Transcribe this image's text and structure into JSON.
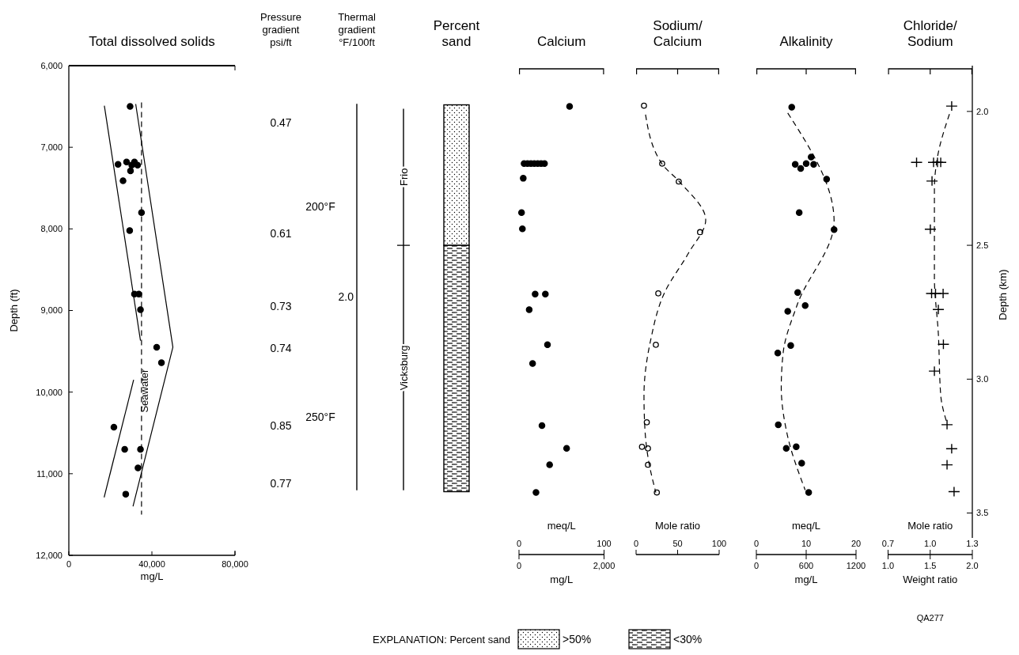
{
  "chart_data": [
    {
      "type": "scatter",
      "title": "Total dissolved solids",
      "xlabel": "mg/L",
      "ylabel": "Depth (ft)",
      "xlim": [
        0,
        80000
      ],
      "xticks": [
        0,
        {
          "value": 40000,
          "label": "40,000"
        },
        {
          "value": 80000,
          "label": "80,000"
        }
      ],
      "ylim": [
        12000,
        6000
      ],
      "yticks": [
        {
          "value": 6000,
          "label": "6,000"
        },
        {
          "value": 7000,
          "label": "7,000"
        },
        {
          "value": 8000,
          "label": "8,000"
        },
        {
          "value": 9000,
          "label": "9,000"
        },
        {
          "value": 10000,
          "label": "10,000"
        },
        {
          "value": 11000,
          "label": "11,000"
        },
        {
          "value": 12000,
          "label": "12,000"
        }
      ],
      "marker": "circle",
      "series": [
        {
          "type": "scatter",
          "color": "#000000",
          "x": [
            29500,
            23700,
            27800,
            30300,
            31600,
            33100,
            29700,
            26100,
            35000,
            29300,
            31600,
            33700,
            34500,
            42300,
            44600,
            21700,
            26900,
            34500,
            33300,
            27400
          ],
          "values": [
            6500,
            7210,
            7180,
            7220,
            7180,
            7220,
            7290,
            7410,
            7800,
            8020,
            8800,
            8800,
            8990,
            9450,
            9640,
            10430,
            10700,
            10700,
            10930,
            11250
          ]
        },
        {
          "type": "line",
          "marker": "none",
          "color": "#000000",
          "x": [
            17100,
            34500
          ],
          "values": [
            6490,
            9370
          ]
        },
        {
          "type": "line",
          "marker": "none",
          "color": "#000000",
          "x": [
            31200,
            17000
          ],
          "values": [
            9850,
            11290
          ]
        },
        {
          "type": "line",
          "marker": "none",
          "color": "#000000",
          "x": [
            32200,
            50100,
            30900
          ],
          "values": [
            6470,
            9450,
            11400
          ]
        },
        {
          "type": "line",
          "marker": "none",
          "name": "Seawater",
          "color": "#000000",
          "line_style": "dashed",
          "x": [
            35000,
            35000
          ],
          "values": [
            6450,
            11500
          ]
        }
      ]
    },
    {
      "type": "other",
      "title": "Pressure\ngradient\npsi/ft",
      "annotations": [
        "0.47",
        "0.61",
        "0.73",
        "0.74",
        "0.85",
        "0.77"
      ]
    },
    {
      "type": "other",
      "title": "Thermal\ngradient\n°F/100ft",
      "annotations": [
        "2.0",
        "200°F",
        "250°F"
      ]
    },
    {
      "type": "other",
      "annotations": [
        "Frio",
        "Vicksburg"
      ]
    },
    {
      "type": "other",
      "title": "Percent\nsand",
      "annotations": [
        "EXPLANATION: Percent sand",
        ">50%",
        "<30%"
      ]
    },
    {
      "type": "scatter",
      "title": "Calcium",
      "xlabel": "meq/L",
      "x2label": "mg/L",
      "xlim": [
        0,
        100
      ],
      "xticks": [
        0,
        100
      ],
      "x2lim": [
        0,
        2000
      ],
      "x2ticks": [
        0,
        {
          "value": 2000,
          "label": "2,000"
        }
      ],
      "ylim": [
        12000,
        6000
      ],
      "tick_labels": "x",
      "marker": "circle",
      "series": [
        {
          "type": "scatter",
          "color": "#000000",
          "x": [
            59.5,
            6,
            10,
            14,
            18,
            22,
            26,
            30,
            5,
            3,
            4,
            19,
            31,
            12,
            33.5,
            16,
            27,
            56,
            36,
            20
          ],
          "values": [
            6500,
            7200,
            7200,
            7200,
            7200,
            7200,
            7200,
            7200,
            7380,
            7800,
            8000,
            8800,
            8800,
            8990,
            9420,
            9650,
            10410,
            10690,
            10890,
            11230
          ]
        }
      ]
    },
    {
      "type": "scatter",
      "title": "Sodium/\nCalcium",
      "xlabel": "Mole ratio",
      "xlim": [
        0,
        100
      ],
      "xticks": [
        0,
        50,
        100
      ],
      "ylim": [
        12000,
        6000
      ],
      "tick_labels": "x",
      "marker": "circle",
      "series": [
        {
          "type": "scatter",
          "color": "#000000",
          "x": [
            9.5,
            31.4,
            51.4,
            77,
            26.7,
            23.8,
            12.9,
            7.1,
            14.3,
            14.3,
            25
          ],
          "values": [
            6490,
            7200,
            7420,
            8040,
            8790,
            9420,
            10370,
            10670,
            10690,
            10890,
            11230
          ]
        },
        {
          "type": "line",
          "marker": "none",
          "color": "#000000",
          "line_style": "dashed",
          "x": [
            11.4,
            31,
            52,
            83.8,
            62.9,
            34.3,
            17.6,
            9.5,
            10.5,
            15.2,
            23.8
          ],
          "values": [
            6600,
            7200,
            7420,
            7890,
            8300,
            8780,
            9360,
            10040,
            10430,
            10850,
            11230
          ]
        }
      ]
    },
    {
      "type": "scatter",
      "title": "Alkalinity",
      "xlabel": "meq/L",
      "x2label": "mg/L",
      "xlim": [
        0,
        20
      ],
      "xticks": [
        0,
        10,
        20
      ],
      "x2lim": [
        0,
        1200
      ],
      "x2ticks": [
        0,
        600,
        1200
      ],
      "ylim": [
        12000,
        6000
      ],
      "tick_labels": "x",
      "marker": "circle",
      "series": [
        {
          "type": "scatter",
          "color": "#000000",
          "x": [
            7.1,
            11.0,
            10.0,
            11.5,
            7.8,
            8.9,
            14.1,
            8.6,
            15.6,
            8.3,
            9.8,
            6.3,
            6.9,
            4.3,
            4.4,
            6.0,
            8.0,
            9.1,
            10.5
          ],
          "values": [
            6510,
            7120,
            7200,
            7210,
            7210,
            7260,
            7390,
            7800,
            8010,
            8780,
            8940,
            9010,
            9430,
            9520,
            10400,
            10690,
            10670,
            10870,
            11230
          ]
        },
        {
          "type": "line",
          "marker": "none",
          "color": "#000000",
          "line_style": "dashed",
          "x": [
            6.3,
            15.6,
            8.2,
            5.4,
            5.0,
            6.2,
            9.8
          ],
          "values": [
            6580,
            7910,
            8930,
            9510,
            9940,
            10520,
            11200
          ]
        }
      ]
    },
    {
      "type": "scatter",
      "title": "Chloride/\nSodium",
      "xlabel": "Mole ratio",
      "x2label": "Weight ratio",
      "y2label": "Depth (km)",
      "xlim": [
        0.7,
        1.3
      ],
      "xticks": [
        0.7,
        {
          "value": 1,
          "label": "1.0"
        },
        1.3
      ],
      "x2lim": [
        1,
        2
      ],
      "x2ticks": [
        {
          "value": 1,
          "label": "1.0"
        },
        1.5,
        {
          "value": 2,
          "label": "2.0"
        }
      ],
      "y2lim": [
        3.658,
        1.829
      ],
      "y2ticks": [
        {
          "value": 2,
          "label": "2.0"
        },
        2.5,
        {
          "value": 3,
          "label": "3.0"
        },
        3.5
      ],
      "marker": "cross",
      "annotations": [
        "QA277"
      ],
      "series": [
        {
          "type": "scatter",
          "axis": "y2",
          "color": "#000000",
          "x": [
            1.153,
            0.903,
            1.024,
            1.052,
            1.075,
            1.013,
            1.001,
            1.01,
            1.038,
            1.092,
            1.058,
            1.094,
            1.03,
            1.12,
            1.153,
            1.12,
            1.17
          ],
          "values": [
            1.98,
            2.19,
            2.19,
            2.19,
            2.19,
            2.26,
            2.44,
            2.68,
            2.68,
            2.68,
            2.74,
            2.87,
            2.97,
            3.17,
            3.26,
            3.32,
            3.42
          ]
        },
        {
          "type": "line",
          "axis": "y2",
          "marker": "none",
          "color": "#000000",
          "line_style": "dashed",
          "x": [
            1.137,
            1.052,
            1.03,
            1.03,
            1.058,
            1.075,
            1.123
          ],
          "values": [
            2.01,
            2.17,
            2.29,
            2.62,
            2.83,
            3.06,
            3.17
          ]
        }
      ]
    }
  ]
}
